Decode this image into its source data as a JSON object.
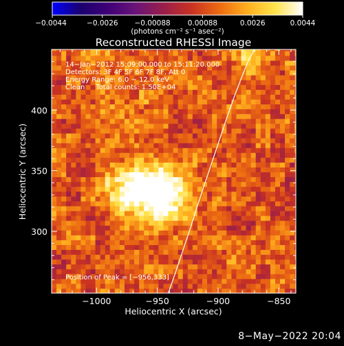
{
  "chart_data": {
    "type": "heatmap",
    "title": "Reconstructed RHESSI Image",
    "xlabel": "Heliocentric X (arcsec)",
    "ylabel": "Heliocentric Y (arcsec)",
    "xlim": [
      -1037,
      -836
    ],
    "ylim": [
      249,
      450
    ],
    "x_ticks": [
      -1000,
      -950,
      -900,
      -850
    ],
    "x_tick_labels": [
      "−1000",
      "−950",
      "−900",
      "−850"
    ],
    "y_ticks": [
      300,
      350,
      400
    ],
    "y_tick_labels": [
      "300",
      "350",
      "400"
    ],
    "colorbar": {
      "min": -0.0044,
      "max": 0.0044,
      "tick_labels": [
        "−0.0044",
        "−0.0026",
        "−0.00088",
        "0.00088",
        "0.0026",
        "0.0044"
      ],
      "label": "(photons cm⁻² s⁻¹ asec⁻²)",
      "colormap": [
        "#0000ff",
        "#1a0070",
        "#3f0077",
        "#6a1478",
        "#9a1e4a",
        "#c83223",
        "#ec6a12",
        "#ffae1e",
        "#ffe34a",
        "#ffffff"
      ]
    },
    "annotations": [
      "14−Jan−2012 15:09:00.000 to 15:11:20.000",
      "Detectors: 3F 4F 5F 6F 7F 8F, Att 0",
      "Energy Range: 6.0 − 12.0 keV",
      "Clean     Total counts: 1.50E+04"
    ],
    "peak_label": "Position of Peak = [−956,333]",
    "peak_position": [
      -956,
      333
    ],
    "intensity_min": -0.0044,
    "intensity_max": 0.0044,
    "background_level": 0.0011,
    "sources": [
      {
        "x": -956,
        "y": 333,
        "sigma": 17,
        "peak": 0.0044
      },
      {
        "x": -980,
        "y": 338,
        "sigma": 15,
        "peak": 0.0014
      },
      {
        "x": -938,
        "y": 326,
        "sigma": 13,
        "peak": 0.0012
      },
      {
        "x": -872,
        "y": 447,
        "sigma": 14,
        "peak": 0.0018
      },
      {
        "x": -1008,
        "y": 440,
        "sigma": 11,
        "peak": 0.0009
      },
      {
        "x": -970,
        "y": 405,
        "sigma": 14,
        "peak": 0.0006
      }
    ],
    "limb_curve": {
      "x": [
        -941,
        -935,
        -929,
        -923,
        -917,
        -911,
        -905,
        -899,
        -893,
        -887,
        -881,
        -875,
        -869
      ],
      "y": [
        249,
        266,
        284,
        302,
        321,
        339,
        357,
        375,
        393,
        410,
        426,
        441,
        452
      ]
    },
    "date_stamp": "8−May−2022 20:04"
  }
}
